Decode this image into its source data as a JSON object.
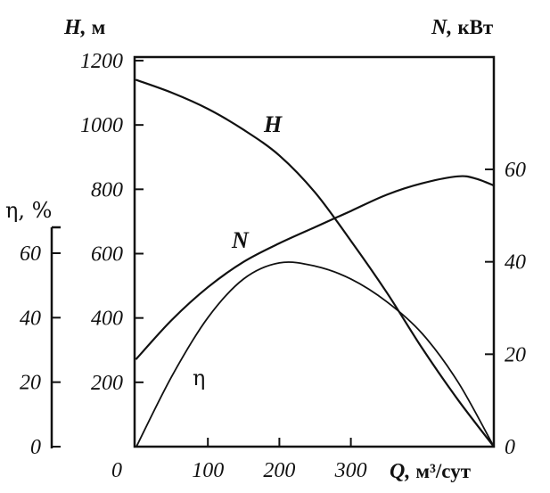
{
  "chart_data": {
    "type": "line",
    "x_axis": {
      "label_symbol": "Q,",
      "label_unit": "м³/сут",
      "range": [
        0,
        500
      ],
      "ticks": [
        0,
        100,
        200,
        300
      ],
      "tick_labels": [
        "0",
        "100",
        "200",
        "300"
      ]
    },
    "left_axis": {
      "label_symbol": "H,",
      "label_unit": "м",
      "range": [
        0,
        1200
      ],
      "ticks": [
        200,
        400,
        600,
        800,
        1000,
        1200
      ],
      "tick_labels": [
        "200",
        "400",
        "600",
        "800",
        "1000",
        "1200"
      ]
    },
    "right_axis": {
      "label_symbol": "N,",
      "label_unit": "кВт",
      "range": [
        0,
        80
      ],
      "ticks": [
        0,
        20,
        40,
        60
      ],
      "tick_labels": [
        "0",
        "20",
        "40",
        "60"
      ]
    },
    "eta_axis": {
      "label": "η, %",
      "range": [
        0,
        67
      ],
      "ticks": [
        0,
        20,
        40,
        60
      ],
      "tick_labels": [
        "0",
        "20",
        "40",
        "60"
      ]
    },
    "series": [
      {
        "name": "H",
        "axis": "left",
        "x": [
          0,
          50,
          100,
          150,
          200,
          250,
          300,
          350,
          400,
          450,
          500
        ],
        "y": [
          1140,
          1100,
          1050,
          985,
          905,
          790,
          640,
          480,
          305,
          145,
          0
        ]
      },
      {
        "name": "N",
        "axis": "right",
        "x": [
          0,
          50,
          100,
          150,
          200,
          250,
          300,
          350,
          400,
          450,
          475,
          500
        ],
        "y": [
          19,
          27.5,
          34.5,
          40,
          44,
          47.5,
          51,
          54.5,
          57,
          58.5,
          58,
          56.5
        ]
      },
      {
        "name": "η",
        "axis": "eta",
        "x": [
          0,
          50,
          100,
          150,
          200,
          250,
          300,
          350,
          400,
          450,
          500
        ],
        "y": [
          0,
          22,
          40,
          52,
          57,
          56,
          52,
          45,
          35,
          20,
          0
        ]
      }
    ],
    "grid": false,
    "legend": "none"
  }
}
